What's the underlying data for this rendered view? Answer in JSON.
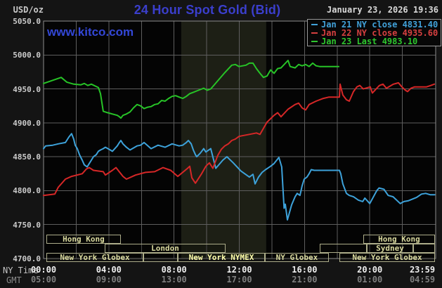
{
  "header": {
    "unit_label": "USD/oz",
    "title": "24 Hour Spot Gold (Bid)",
    "datetime": "January 23, 2026 19:36",
    "watermark": "www.kitco.com"
  },
  "axis_labels": {
    "ny_time": "NY Time",
    "gmt": "GMT"
  },
  "legend": {
    "items": [
      {
        "label": "Jan 21 NY close 4831.40",
        "color": "#41a1d9"
      },
      {
        "label": "Jan 22 NY close 4935.60",
        "color": "#d64040"
      },
      {
        "label": "Jan 23 Last 4983.10",
        "color": "#2fc62f"
      }
    ]
  },
  "chart_data": {
    "type": "line",
    "title": "24 Hour Spot Gold (Bid)",
    "ylabel": "USD/oz",
    "ylim": [
      4700,
      5050
    ],
    "xlim_hours": [
      0,
      24
    ],
    "grid": true,
    "legend_position": "top-right",
    "y_ticks": [
      {
        "label": "5050.0",
        "value": 5050
      },
      {
        "label": "5000.0",
        "value": 5000
      },
      {
        "label": "4950.0",
        "value": 4950
      },
      {
        "label": "4900.0",
        "value": 4900
      },
      {
        "label": "4850.0",
        "value": 4850
      },
      {
        "label": "4800.0",
        "value": 4800
      },
      {
        "label": "4750.0",
        "value": 4750
      },
      {
        "label": "4700.0",
        "value": 4700
      }
    ],
    "x_ticks_ny": [
      {
        "label": "00:00",
        "hour": 0
      },
      {
        "label": "04:00",
        "hour": 4
      },
      {
        "label": "08:00",
        "hour": 8
      },
      {
        "label": "12:00",
        "hour": 12
      },
      {
        "label": "16:00",
        "hour": 16
      },
      {
        "label": "20:00",
        "hour": 20
      },
      {
        "label": "23:59",
        "hour": 23.98
      }
    ],
    "x_ticks_gmt": [
      {
        "label": "05:00",
        "hour": 0
      },
      {
        "label": "09:00",
        "hour": 4
      },
      {
        "label": "13:00",
        "hour": 8
      },
      {
        "label": "17:00",
        "hour": 12
      },
      {
        "label": "21:00",
        "hour": 16
      },
      {
        "label": "01:00",
        "hour": 20
      },
      {
        "label": "04:59",
        "hour": 23.98
      }
    ],
    "nymex_band_hours": [
      8.44,
      13.65
    ],
    "band_color": "#1d1f15",
    "session_rows": [
      {
        "top": 334,
        "boxes": [
          {
            "h1": 0.17,
            "h2": 4.74,
            "label": "Hong Kong",
            "highlight": false
          },
          {
            "h1": 19.6,
            "h2": 24.0,
            "label": "Hong Kong",
            "highlight": false
          }
        ]
      },
      {
        "top": 347,
        "boxes": [
          {
            "h1": 3.75,
            "h2": 11.16,
            "label": "London",
            "highlight": false
          },
          {
            "h1": 16.93,
            "h2": 19.82,
            "label": "",
            "highlight": false
          },
          {
            "h1": 19.82,
            "h2": 22.66,
            "label": "Sydney",
            "highlight": false
          },
          {
            "h1": 22.66,
            "h2": 24.0,
            "label": "",
            "highlight": false
          }
        ]
      },
      {
        "top": 360,
        "boxes": [
          {
            "h1": 0.17,
            "h2": 6.12,
            "label": "New York Globex",
            "highlight": false
          },
          {
            "h1": 6.12,
            "h2": 8.23,
            "label": "",
            "highlight": false
          },
          {
            "h1": 8.23,
            "h2": 13.57,
            "label": "New York NYMEX",
            "highlight": true
          },
          {
            "h1": 13.57,
            "h2": 17.49,
            "label": "NY Globex",
            "highlight": false
          },
          {
            "h1": 18.14,
            "h2": 24.0,
            "label": "New York Globex",
            "highlight": false
          }
        ]
      }
    ],
    "series": [
      {
        "name": "Jan 21",
        "legend": "Jan 21 NY close 4831.40",
        "close": 4831.4,
        "color": "#3da2da",
        "points": [
          [
            0,
            4862
          ],
          [
            0.13,
            4866
          ],
          [
            0.56,
            4867
          ],
          [
            0.9,
            4869
          ],
          [
            1.34,
            4871
          ],
          [
            1.55,
            4879
          ],
          [
            1.72,
            4884
          ],
          [
            1.85,
            4876
          ],
          [
            1.94,
            4867
          ],
          [
            2.07,
            4862
          ],
          [
            2.2,
            4853
          ],
          [
            2.37,
            4845
          ],
          [
            2.5,
            4838
          ],
          [
            2.67,
            4835
          ],
          [
            2.8,
            4840
          ],
          [
            2.93,
            4845
          ],
          [
            3.06,
            4850
          ],
          [
            3.23,
            4853
          ],
          [
            3.36,
            4858
          ],
          [
            3.49,
            4860
          ],
          [
            3.66,
            4862
          ],
          [
            3.79,
            4864
          ],
          [
            4.09,
            4860
          ],
          [
            4.22,
            4858
          ],
          [
            4.52,
            4866
          ],
          [
            4.65,
            4871
          ],
          [
            4.74,
            4874
          ],
          [
            4.87,
            4869
          ],
          [
            5.08,
            4864
          ],
          [
            5.3,
            4860
          ],
          [
            5.73,
            4866
          ],
          [
            5.95,
            4867
          ],
          [
            6.16,
            4871
          ],
          [
            6.59,
            4862
          ],
          [
            7.02,
            4867
          ],
          [
            7.45,
            4864
          ],
          [
            7.88,
            4869
          ],
          [
            8.31,
            4866
          ],
          [
            8.53,
            4867
          ],
          [
            8.75,
            4871
          ],
          [
            8.88,
            4874
          ],
          [
            9.05,
            4869
          ],
          [
            9.18,
            4860
          ],
          [
            9.31,
            4853
          ],
          [
            9.39,
            4850
          ],
          [
            9.6,
            4855
          ],
          [
            9.82,
            4862
          ],
          [
            9.95,
            4857
          ],
          [
            10.25,
            4862
          ],
          [
            10.56,
            4833
          ],
          [
            10.99,
            4845
          ],
          [
            11.24,
            4850
          ],
          [
            11.63,
            4841
          ],
          [
            12.1,
            4829
          ],
          [
            12.62,
            4820
          ],
          [
            12.84,
            4824
          ],
          [
            12.97,
            4810
          ],
          [
            13.18,
            4820
          ],
          [
            13.4,
            4827
          ],
          [
            13.61,
            4831
          ],
          [
            13.92,
            4836
          ],
          [
            14.13,
            4840
          ],
          [
            14.43,
            4849
          ],
          [
            14.6,
            4835
          ],
          [
            14.75,
            4774
          ],
          [
            14.82,
            4780
          ],
          [
            14.95,
            4757
          ],
          [
            15.21,
            4779
          ],
          [
            15.42,
            4791
          ],
          [
            15.55,
            4796
          ],
          [
            15.72,
            4793
          ],
          [
            15.85,
            4807
          ],
          [
            15.98,
            4817
          ],
          [
            16.15,
            4820
          ],
          [
            16.28,
            4825
          ],
          [
            16.41,
            4831
          ],
          [
            16.6,
            4830
          ],
          [
            18.14,
            4830
          ],
          [
            18.22,
            4825
          ],
          [
            18.35,
            4810
          ],
          [
            18.57,
            4796
          ],
          [
            18.74,
            4793
          ],
          [
            19.0,
            4791
          ],
          [
            19.3,
            4786
          ],
          [
            19.57,
            4784
          ],
          [
            19.7,
            4789
          ],
          [
            20.0,
            4781
          ],
          [
            20.43,
            4800
          ],
          [
            20.57,
            4804
          ],
          [
            20.87,
            4802
          ],
          [
            21.13,
            4793
          ],
          [
            21.43,
            4791
          ],
          [
            21.87,
            4781
          ],
          [
            22.1,
            4784
          ],
          [
            22.35,
            4785
          ],
          [
            22.87,
            4790
          ],
          [
            23.17,
            4795
          ],
          [
            23.43,
            4796
          ],
          [
            23.7,
            4794
          ],
          [
            23.98,
            4794
          ]
        ]
      },
      {
        "name": "Jan 22",
        "legend": "Jan 22 NY close 4935.60",
        "close": 4935.6,
        "color": "#d62727",
        "points": [
          [
            0,
            4793
          ],
          [
            0.69,
            4795
          ],
          [
            0.9,
            4805
          ],
          [
            1.34,
            4817
          ],
          [
            1.72,
            4821
          ],
          [
            2.37,
            4825
          ],
          [
            2.63,
            4832
          ],
          [
            2.8,
            4834
          ],
          [
            3.06,
            4830
          ],
          [
            3.66,
            4828
          ],
          [
            3.79,
            4823
          ],
          [
            4.22,
            4830
          ],
          [
            4.44,
            4834
          ],
          [
            4.87,
            4821
          ],
          [
            5.08,
            4817
          ],
          [
            5.64,
            4823
          ],
          [
            6.25,
            4827
          ],
          [
            6.81,
            4828
          ],
          [
            7.32,
            4834
          ],
          [
            7.8,
            4830
          ],
          [
            8.23,
            4821
          ],
          [
            8.83,
            4833
          ],
          [
            8.96,
            4836
          ],
          [
            9.09,
            4819
          ],
          [
            9.31,
            4811
          ],
          [
            9.69,
            4825
          ],
          [
            9.95,
            4836
          ],
          [
            10.17,
            4841
          ],
          [
            10.38,
            4833
          ],
          [
            10.68,
            4852
          ],
          [
            10.9,
            4861
          ],
          [
            11.11,
            4866
          ],
          [
            11.33,
            4869
          ],
          [
            11.54,
            4874
          ],
          [
            11.76,
            4876
          ],
          [
            11.98,
            4880
          ],
          [
            12.19,
            4881
          ],
          [
            12.62,
            4883
          ],
          [
            13.05,
            4885
          ],
          [
            13.27,
            4883
          ],
          [
            13.7,
            4901
          ],
          [
            14.13,
            4911
          ],
          [
            14.35,
            4915
          ],
          [
            14.56,
            4909
          ],
          [
            14.99,
            4920
          ],
          [
            15.42,
            4927
          ],
          [
            15.64,
            4929
          ],
          [
            15.85,
            4922
          ],
          [
            16.07,
            4919
          ],
          [
            16.28,
            4927
          ],
          [
            16.71,
            4932
          ],
          [
            17.15,
            4936
          ],
          [
            17.5,
            4938
          ],
          [
            18.14,
            4938
          ],
          [
            18.18,
            4957
          ],
          [
            18.35,
            4941
          ],
          [
            18.57,
            4934
          ],
          [
            18.74,
            4932
          ],
          [
            19.0,
            4946
          ],
          [
            19.21,
            4953
          ],
          [
            19.39,
            4955
          ],
          [
            19.6,
            4950
          ],
          [
            20.03,
            4953
          ],
          [
            20.16,
            4944
          ],
          [
            20.59,
            4955
          ],
          [
            20.81,
            4957
          ],
          [
            21.02,
            4951
          ],
          [
            21.45,
            4957
          ],
          [
            21.76,
            4959
          ],
          [
            21.97,
            4953
          ],
          [
            22.19,
            4948
          ],
          [
            22.32,
            4946
          ],
          [
            22.53,
            4951
          ],
          [
            22.75,
            4953
          ],
          [
            23.48,
            4953
          ],
          [
            23.74,
            4955
          ],
          [
            23.96,
            4957
          ]
        ]
      },
      {
        "name": "Jan 23",
        "legend": "Jan 23 Last 4983.10",
        "last": 4983.1,
        "color": "#27c427",
        "points": [
          [
            0,
            4958
          ],
          [
            1.08,
            4967
          ],
          [
            1.42,
            4960
          ],
          [
            1.85,
            4957
          ],
          [
            2.28,
            4956
          ],
          [
            2.5,
            4958
          ],
          [
            2.71,
            4955
          ],
          [
            2.93,
            4957
          ],
          [
            3.36,
            4952
          ],
          [
            3.49,
            4943
          ],
          [
            3.66,
            4917
          ],
          [
            3.92,
            4915
          ],
          [
            4.22,
            4913
          ],
          [
            4.52,
            4911
          ],
          [
            4.65,
            4909
          ],
          [
            4.74,
            4907
          ],
          [
            4.87,
            4911
          ],
          [
            5.08,
            4913
          ],
          [
            5.3,
            4916
          ],
          [
            5.51,
            4922
          ],
          [
            5.73,
            4927
          ],
          [
            5.95,
            4925
          ],
          [
            6.16,
            4921
          ],
          [
            6.38,
            4923
          ],
          [
            6.59,
            4924
          ],
          [
            6.81,
            4927
          ],
          [
            7.02,
            4928
          ],
          [
            7.24,
            4933
          ],
          [
            7.45,
            4932
          ],
          [
            7.67,
            4936
          ],
          [
            7.88,
            4939
          ],
          [
            8.1,
            4940
          ],
          [
            8.31,
            4938
          ],
          [
            8.53,
            4936
          ],
          [
            8.75,
            4939
          ],
          [
            8.96,
            4943
          ],
          [
            9.18,
            4945
          ],
          [
            9.39,
            4947
          ],
          [
            9.61,
            4949
          ],
          [
            9.82,
            4951
          ],
          [
            10.04,
            4948
          ],
          [
            10.25,
            4950
          ],
          [
            10.68,
            4962
          ],
          [
            11.11,
            4974
          ],
          [
            11.54,
            4985
          ],
          [
            11.76,
            4986
          ],
          [
            11.98,
            4983
          ],
          [
            12.41,
            4985
          ],
          [
            12.62,
            4988
          ],
          [
            12.84,
            4988
          ],
          [
            13.05,
            4980
          ],
          [
            13.27,
            4973
          ],
          [
            13.48,
            4967
          ],
          [
            13.7,
            4969
          ],
          [
            13.92,
            4978
          ],
          [
            14.13,
            4973
          ],
          [
            14.35,
            4980
          ],
          [
            14.56,
            4981
          ],
          [
            14.99,
            4992
          ],
          [
            15.12,
            4983
          ],
          [
            15.42,
            4981
          ],
          [
            15.64,
            4986
          ],
          [
            15.85,
            4984
          ],
          [
            16.07,
            4986
          ],
          [
            16.28,
            4983
          ],
          [
            16.5,
            4988
          ],
          [
            16.71,
            4984
          ],
          [
            16.93,
            4983
          ],
          [
            17.5,
            4983
          ],
          [
            18.1,
            4983
          ]
        ]
      }
    ]
  }
}
